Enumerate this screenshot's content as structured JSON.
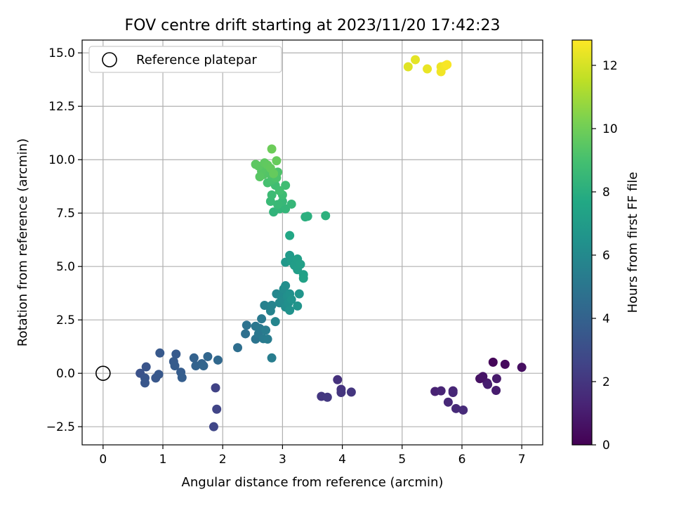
{
  "chart_data": {
    "type": "scatter",
    "title": "FOV centre drift starting at 2023/11/20 17:42:23",
    "xlabel": "Angular distance from reference (arcmin)",
    "ylabel": "Rotation from reference (arcmin)",
    "xlim": [
      -0.35,
      7.35
    ],
    "ylim": [
      -3.35,
      15.6
    ],
    "xticks": [
      0,
      1,
      2,
      3,
      4,
      5,
      6,
      7
    ],
    "xtick_labels": [
      "0",
      "1",
      "2",
      "3",
      "4",
      "5",
      "6",
      "7"
    ],
    "yticks": [
      -2.5,
      0.0,
      2.5,
      5.0,
      7.5,
      10.0,
      12.5,
      15.0
    ],
    "ytick_labels": [
      "−2.5",
      "0.0",
      "2.5",
      "5.0",
      "7.5",
      "10.0",
      "12.5",
      "15.0"
    ],
    "grid": true,
    "colorscale": "viridis",
    "colorbar": {
      "label": "Hours from first FF file",
      "range": [
        0,
        12.8
      ],
      "ticks": [
        0,
        2,
        4,
        6,
        8,
        10,
        12
      ],
      "tick_labels": [
        "0",
        "2",
        "4",
        "6",
        "8",
        "10",
        "12"
      ]
    },
    "legend": {
      "position": "top-left",
      "entries": [
        "Reference platepar"
      ]
    },
    "reference_point": {
      "x": 0.0,
      "y": 0.0
    },
    "points": [
      {
        "x": 6.52,
        "y": 0.52,
        "h": 0.2
      },
      {
        "x": 6.72,
        "y": 0.42,
        "h": 0.3
      },
      {
        "x": 7.0,
        "y": 0.28,
        "h": 0.5
      },
      {
        "x": 6.3,
        "y": -0.25,
        "h": 0.6
      },
      {
        "x": 6.35,
        "y": -0.15,
        "h": 0.7
      },
      {
        "x": 6.42,
        "y": -0.45,
        "h": 0.8
      },
      {
        "x": 6.58,
        "y": -0.25,
        "h": 0.9
      },
      {
        "x": 6.57,
        "y": -0.8,
        "h": 1.0
      },
      {
        "x": 6.43,
        "y": -0.52,
        "h": 1.1
      },
      {
        "x": 5.55,
        "y": -0.85,
        "h": 1.2
      },
      {
        "x": 5.65,
        "y": -0.82,
        "h": 1.3
      },
      {
        "x": 5.85,
        "y": -0.82,
        "h": 1.35
      },
      {
        "x": 5.85,
        "y": -0.9,
        "h": 1.4
      },
      {
        "x": 5.77,
        "y": -1.35,
        "h": 1.45
      },
      {
        "x": 5.9,
        "y": -1.65,
        "h": 1.5
      },
      {
        "x": 6.02,
        "y": -1.72,
        "h": 1.55
      },
      {
        "x": 3.92,
        "y": -0.3,
        "h": 1.8
      },
      {
        "x": 3.98,
        "y": -0.75,
        "h": 1.9
      },
      {
        "x": 3.98,
        "y": -0.9,
        "h": 1.95
      },
      {
        "x": 4.15,
        "y": -0.88,
        "h": 2.0
      },
      {
        "x": 3.65,
        "y": -1.08,
        "h": 2.05
      },
      {
        "x": 3.75,
        "y": -1.12,
        "h": 2.1
      },
      {
        "x": 1.88,
        "y": -0.68,
        "h": 2.5
      },
      {
        "x": 1.9,
        "y": -1.68,
        "h": 2.6
      },
      {
        "x": 1.85,
        "y": -2.5,
        "h": 2.7
      },
      {
        "x": 0.62,
        "y": 0.0,
        "h": 3.2
      },
      {
        "x": 0.72,
        "y": 0.3,
        "h": 3.3
      },
      {
        "x": 0.7,
        "y": -0.22,
        "h": 3.35
      },
      {
        "x": 0.7,
        "y": -0.45,
        "h": 3.4
      },
      {
        "x": 0.88,
        "y": -0.22,
        "h": 3.45
      },
      {
        "x": 0.93,
        "y": -0.05,
        "h": 3.5
      },
      {
        "x": 0.95,
        "y": 0.95,
        "h": 3.55
      },
      {
        "x": 1.22,
        "y": 0.9,
        "h": 3.6
      },
      {
        "x": 1.18,
        "y": 0.55,
        "h": 3.65
      },
      {
        "x": 1.2,
        "y": 0.35,
        "h": 3.7
      },
      {
        "x": 1.3,
        "y": 0.05,
        "h": 3.75
      },
      {
        "x": 1.32,
        "y": -0.2,
        "h": 3.8
      },
      {
        "x": 1.52,
        "y": 0.72,
        "h": 4.0
      },
      {
        "x": 1.55,
        "y": 0.35,
        "h": 4.05
      },
      {
        "x": 1.65,
        "y": 0.45,
        "h": 4.1
      },
      {
        "x": 1.68,
        "y": 0.35,
        "h": 4.15
      },
      {
        "x": 1.75,
        "y": 0.78,
        "h": 4.2
      },
      {
        "x": 1.92,
        "y": 0.62,
        "h": 4.3
      },
      {
        "x": 2.25,
        "y": 1.2,
        "h": 4.6
      },
      {
        "x": 2.38,
        "y": 1.85,
        "h": 4.7
      },
      {
        "x": 2.4,
        "y": 2.25,
        "h": 4.8
      },
      {
        "x": 2.55,
        "y": 1.6,
        "h": 4.9
      },
      {
        "x": 2.55,
        "y": 2.2,
        "h": 5.0
      },
      {
        "x": 2.6,
        "y": 1.85,
        "h": 5.05
      },
      {
        "x": 2.62,
        "y": 2.1,
        "h": 5.1
      },
      {
        "x": 2.65,
        "y": 2.55,
        "h": 5.15
      },
      {
        "x": 2.68,
        "y": 1.62,
        "h": 5.2
      },
      {
        "x": 2.72,
        "y": 2.02,
        "h": 5.3
      },
      {
        "x": 2.75,
        "y": 1.6,
        "h": 5.35
      },
      {
        "x": 2.82,
        "y": 0.72,
        "h": 5.4
      },
      {
        "x": 2.7,
        "y": 3.18,
        "h": 5.6
      },
      {
        "x": 2.8,
        "y": 2.92,
        "h": 5.7
      },
      {
        "x": 2.82,
        "y": 3.18,
        "h": 5.75
      },
      {
        "x": 2.88,
        "y": 2.42,
        "h": 5.8
      },
      {
        "x": 2.9,
        "y": 3.72,
        "h": 5.9
      },
      {
        "x": 2.95,
        "y": 3.3,
        "h": 6.0
      },
      {
        "x": 2.98,
        "y": 3.6,
        "h": 6.05
      },
      {
        "x": 3.0,
        "y": 3.42,
        "h": 6.1
      },
      {
        "x": 3.02,
        "y": 3.95,
        "h": 6.15
      },
      {
        "x": 3.05,
        "y": 3.1,
        "h": 6.2
      },
      {
        "x": 3.05,
        "y": 4.1,
        "h": 6.25
      },
      {
        "x": 3.08,
        "y": 3.6,
        "h": 6.3
      },
      {
        "x": 3.1,
        "y": 3.3,
        "h": 6.35
      },
      {
        "x": 3.12,
        "y": 3.72,
        "h": 6.4
      },
      {
        "x": 3.12,
        "y": 2.95,
        "h": 6.45
      },
      {
        "x": 3.15,
        "y": 3.45,
        "h": 6.5
      },
      {
        "x": 3.25,
        "y": 3.15,
        "h": 6.55
      },
      {
        "x": 3.28,
        "y": 3.72,
        "h": 6.6
      },
      {
        "x": 3.05,
        "y": 5.2,
        "h": 6.8
      },
      {
        "x": 3.12,
        "y": 5.52,
        "h": 6.9
      },
      {
        "x": 3.15,
        "y": 5.25,
        "h": 7.0
      },
      {
        "x": 3.2,
        "y": 5.05,
        "h": 7.05
      },
      {
        "x": 3.25,
        "y": 4.85,
        "h": 7.1
      },
      {
        "x": 3.25,
        "y": 5.35,
        "h": 7.15
      },
      {
        "x": 3.3,
        "y": 5.1,
        "h": 7.2
      },
      {
        "x": 3.35,
        "y": 4.62,
        "h": 7.25
      },
      {
        "x": 3.35,
        "y": 4.45,
        "h": 7.3
      },
      {
        "x": 3.12,
        "y": 6.45,
        "h": 7.6
      },
      {
        "x": 3.38,
        "y": 7.32,
        "h": 8.0
      },
      {
        "x": 3.42,
        "y": 7.35,
        "h": 8.05
      },
      {
        "x": 3.72,
        "y": 7.38,
        "h": 8.1
      },
      {
        "x": 2.85,
        "y": 7.55,
        "h": 8.3
      },
      {
        "x": 2.95,
        "y": 7.7,
        "h": 8.35
      },
      {
        "x": 3.05,
        "y": 7.7,
        "h": 8.4
      },
      {
        "x": 3.15,
        "y": 7.92,
        "h": 8.45
      },
      {
        "x": 3.0,
        "y": 8.05,
        "h": 8.5
      },
      {
        "x": 2.92,
        "y": 7.9,
        "h": 8.55
      },
      {
        "x": 2.8,
        "y": 8.05,
        "h": 8.6
      },
      {
        "x": 2.82,
        "y": 8.35,
        "h": 8.7
      },
      {
        "x": 3.0,
        "y": 8.35,
        "h": 8.75
      },
      {
        "x": 3.05,
        "y": 8.8,
        "h": 8.8
      },
      {
        "x": 2.88,
        "y": 8.8,
        "h": 8.85
      },
      {
        "x": 2.95,
        "y": 8.55,
        "h": 8.9
      },
      {
        "x": 2.75,
        "y": 8.92,
        "h": 9.0
      },
      {
        "x": 2.82,
        "y": 9.05,
        "h": 9.05
      },
      {
        "x": 2.85,
        "y": 9.2,
        "h": 9.1
      },
      {
        "x": 2.9,
        "y": 9.15,
        "h": 9.15
      },
      {
        "x": 2.92,
        "y": 9.42,
        "h": 9.2
      },
      {
        "x": 2.78,
        "y": 9.35,
        "h": 9.25
      },
      {
        "x": 2.72,
        "y": 9.55,
        "h": 9.3
      },
      {
        "x": 2.68,
        "y": 9.3,
        "h": 9.35
      },
      {
        "x": 2.65,
        "y": 9.45,
        "h": 9.4
      },
      {
        "x": 2.62,
        "y": 9.2,
        "h": 9.45
      },
      {
        "x": 2.6,
        "y": 9.7,
        "h": 9.5
      },
      {
        "x": 2.55,
        "y": 9.78,
        "h": 9.55
      },
      {
        "x": 2.7,
        "y": 9.85,
        "h": 9.6
      },
      {
        "x": 2.75,
        "y": 9.75,
        "h": 9.65
      },
      {
        "x": 2.8,
        "y": 9.6,
        "h": 9.7
      },
      {
        "x": 2.85,
        "y": 9.35,
        "h": 9.75
      },
      {
        "x": 2.9,
        "y": 9.95,
        "h": 9.8
      },
      {
        "x": 2.82,
        "y": 10.5,
        "h": 9.9
      },
      {
        "x": 5.1,
        "y": 14.35,
        "h": 12.2
      },
      {
        "x": 5.22,
        "y": 14.68,
        "h": 12.3
      },
      {
        "x": 5.42,
        "y": 14.25,
        "h": 12.4
      },
      {
        "x": 5.65,
        "y": 14.35,
        "h": 12.5
      },
      {
        "x": 5.65,
        "y": 14.12,
        "h": 12.55
      },
      {
        "x": 5.72,
        "y": 14.4,
        "h": 12.6
      },
      {
        "x": 5.75,
        "y": 14.45,
        "h": 12.7
      }
    ]
  }
}
